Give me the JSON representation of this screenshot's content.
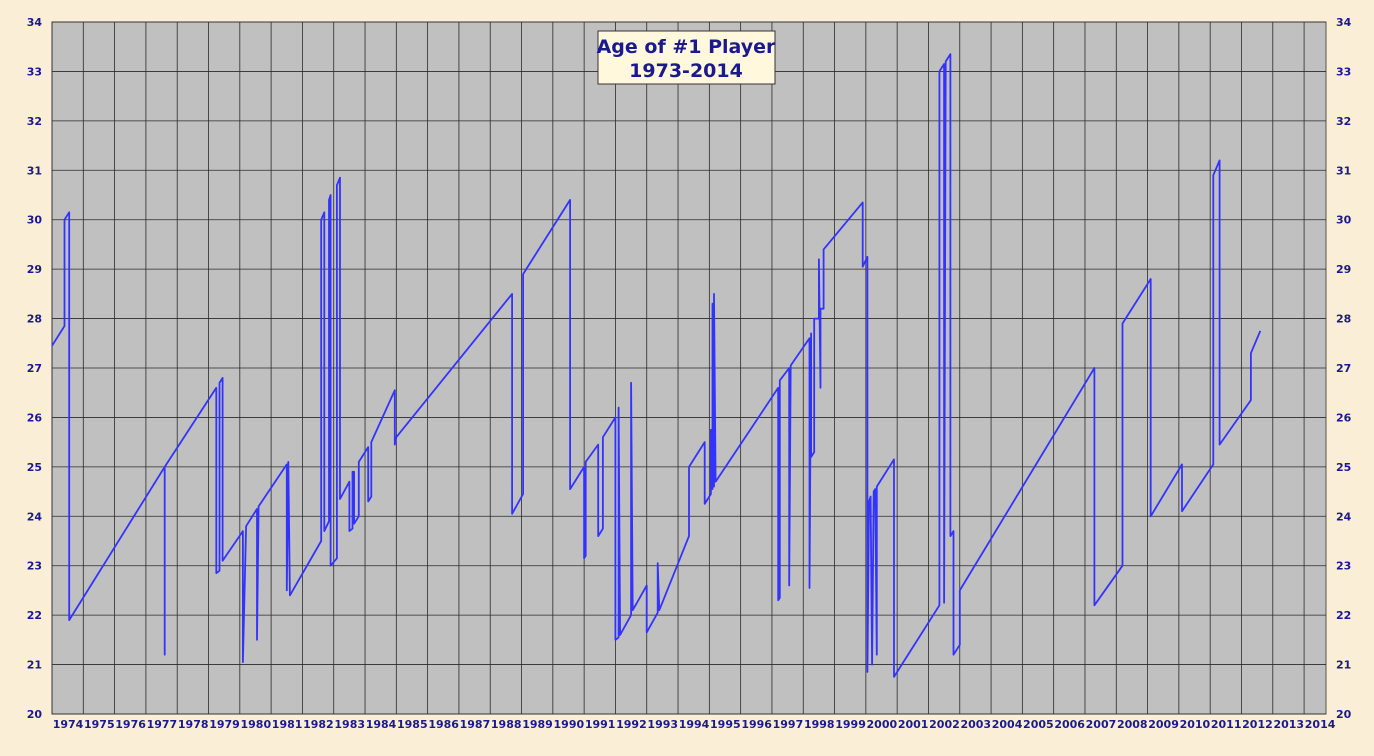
{
  "chart_data": {
    "type": "line",
    "title": "Age of #1 Player",
    "subtitle": "1973-2014",
    "xlabel": "",
    "ylabel": "",
    "xlim": [
      1974,
      2014.7
    ],
    "ylim": [
      20,
      34
    ],
    "x_ticks": [
      "1974",
      "1975",
      "1976",
      "1977",
      "1978",
      "1979",
      "1980",
      "1981",
      "1982",
      "1983",
      "1984",
      "1985",
      "1986",
      "1987",
      "1988",
      "1989",
      "1990",
      "1991",
      "1992",
      "1993",
      "1994",
      "1995",
      "1996",
      "1997",
      "1998",
      "1999",
      "2000",
      "2001",
      "2002",
      "2003",
      "2004",
      "2005",
      "2006",
      "2007",
      "2008",
      "2009",
      "2010",
      "2011",
      "2012",
      "2013",
      "2014"
    ],
    "y_ticks": [
      "20",
      "21",
      "22",
      "23",
      "24",
      "25",
      "26",
      "27",
      "28",
      "29",
      "30",
      "31",
      "32",
      "33",
      "34"
    ],
    "grid": true,
    "axes": "left-and-right",
    "colors": {
      "line": "#3333ff",
      "plot_bg": "#c0c0c0",
      "grid": "#2a2a2a",
      "title_box": "#fff8dc",
      "page_bg": "#fbeed6",
      "text": "#1a1a8c"
    },
    "series": [
      {
        "name": "",
        "points": [
          [
            1974.0,
            27.45
          ],
          [
            1974.4,
            27.85
          ],
          [
            1974.4,
            30.0
          ],
          [
            1974.55,
            30.15
          ],
          [
            1974.55,
            21.9
          ],
          [
            1977.6,
            25.0
          ],
          [
            1977.6,
            21.2
          ],
          [
            1977.6,
            25.0
          ],
          [
            1979.25,
            26.6
          ],
          [
            1979.25,
            22.85
          ],
          [
            1979.35,
            22.9
          ],
          [
            1979.35,
            26.7
          ],
          [
            1979.45,
            26.8
          ],
          [
            1979.45,
            23.1
          ],
          [
            1980.1,
            23.7
          ],
          [
            1980.1,
            21.05
          ],
          [
            1980.2,
            23.8
          ],
          [
            1980.55,
            24.15
          ],
          [
            1980.55,
            21.5
          ],
          [
            1980.6,
            24.2
          ],
          [
            1981.5,
            25.05
          ],
          [
            1981.5,
            22.5
          ],
          [
            1981.55,
            25.1
          ],
          [
            1981.6,
            22.4
          ],
          [
            1982.6,
            23.5
          ],
          [
            1982.6,
            30.0
          ],
          [
            1982.7,
            30.15
          ],
          [
            1982.7,
            23.7
          ],
          [
            1982.85,
            23.9
          ],
          [
            1982.85,
            30.4
          ],
          [
            1982.9,
            30.5
          ],
          [
            1982.9,
            23.0
          ],
          [
            1983.1,
            23.15
          ],
          [
            1983.1,
            30.7
          ],
          [
            1983.2,
            30.85
          ],
          [
            1983.2,
            24.35
          ],
          [
            1983.5,
            24.7
          ],
          [
            1983.5,
            23.7
          ],
          [
            1983.6,
            23.75
          ],
          [
            1983.6,
            24.9
          ],
          [
            1983.65,
            24.9
          ],
          [
            1983.65,
            23.85
          ],
          [
            1983.8,
            24.0
          ],
          [
            1983.8,
            25.1
          ],
          [
            1984.1,
            25.4
          ],
          [
            1984.1,
            24.3
          ],
          [
            1984.2,
            24.4
          ],
          [
            1984.2,
            25.5
          ],
          [
            1984.95,
            26.55
          ],
          [
            1984.95,
            25.45
          ],
          [
            1985.0,
            25.6
          ],
          [
            1988.7,
            28.5
          ],
          [
            1988.7,
            24.05
          ],
          [
            1989.05,
            24.45
          ],
          [
            1989.05,
            28.9
          ],
          [
            1990.55,
            30.4
          ],
          [
            1990.55,
            24.55
          ],
          [
            1991.0,
            25.0
          ],
          [
            1991.0,
            23.15
          ],
          [
            1991.05,
            23.2
          ],
          [
            1991.05,
            25.1
          ],
          [
            1991.45,
            25.45
          ],
          [
            1991.45,
            23.6
          ],
          [
            1991.6,
            23.75
          ],
          [
            1991.6,
            25.6
          ],
          [
            1992.0,
            26.0
          ],
          [
            1992.0,
            21.5
          ],
          [
            1992.1,
            21.55
          ],
          [
            1992.1,
            26.2
          ],
          [
            1992.15,
            21.6
          ],
          [
            1992.5,
            22.0
          ],
          [
            1992.5,
            26.7
          ],
          [
            1992.55,
            22.1
          ],
          [
            1993.0,
            22.6
          ],
          [
            1993.0,
            21.65
          ],
          [
            1993.35,
            22.05
          ],
          [
            1993.35,
            23.05
          ],
          [
            1993.4,
            22.1
          ],
          [
            1994.35,
            23.6
          ],
          [
            1994.35,
            25.0
          ],
          [
            1994.85,
            25.5
          ],
          [
            1994.85,
            24.25
          ],
          [
            1995.05,
            24.45
          ],
          [
            1995.05,
            25.75
          ],
          [
            1995.1,
            24.55
          ],
          [
            1995.1,
            28.3
          ],
          [
            1995.15,
            24.6
          ],
          [
            1995.15,
            28.5
          ],
          [
            1995.2,
            24.7
          ],
          [
            1997.2,
            26.6
          ],
          [
            1997.2,
            22.3
          ],
          [
            1997.25,
            22.35
          ],
          [
            1997.25,
            26.75
          ],
          [
            1997.55,
            27.0
          ],
          [
            1997.55,
            22.6
          ],
          [
            1997.6,
            27.05
          ],
          [
            1998.2,
            27.6
          ],
          [
            1998.2,
            22.55
          ],
          [
            1998.25,
            27.7
          ],
          [
            1998.25,
            25.2
          ],
          [
            1998.35,
            25.3
          ],
          [
            1998.35,
            28.0
          ],
          [
            1998.5,
            28.0
          ],
          [
            1998.5,
            29.2
          ],
          [
            1998.55,
            26.6
          ],
          [
            1998.55,
            28.2
          ],
          [
            1998.65,
            28.2
          ],
          [
            1998.65,
            29.4
          ],
          [
            1999.9,
            30.35
          ],
          [
            1999.9,
            29.05
          ],
          [
            2000.05,
            29.25
          ],
          [
            2000.05,
            20.85
          ],
          [
            2000.1,
            24.3
          ],
          [
            2000.15,
            24.4
          ],
          [
            2000.2,
            21.0
          ],
          [
            2000.25,
            24.5
          ],
          [
            2000.3,
            24.55
          ],
          [
            2000.35,
            21.2
          ],
          [
            2000.35,
            24.6
          ],
          [
            2000.9,
            25.15
          ],
          [
            2000.9,
            20.75
          ],
          [
            2002.35,
            22.2
          ],
          [
            2002.35,
            33.0
          ],
          [
            2002.5,
            33.15
          ],
          [
            2002.5,
            22.25
          ],
          [
            2002.55,
            33.2
          ],
          [
            2002.7,
            33.35
          ],
          [
            2002.7,
            23.6
          ],
          [
            2002.8,
            23.7
          ],
          [
            2002.8,
            21.2
          ],
          [
            2003.0,
            21.4
          ],
          [
            2003.0,
            22.5
          ],
          [
            2007.3,
            27.0
          ],
          [
            2007.3,
            22.2
          ],
          [
            2008.2,
            23.0
          ],
          [
            2008.2,
            27.9
          ],
          [
            2009.1,
            28.8
          ],
          [
            2009.1,
            24.0
          ],
          [
            2010.1,
            25.05
          ],
          [
            2010.1,
            24.1
          ],
          [
            2011.1,
            25.05
          ],
          [
            2011.1,
            30.9
          ],
          [
            2011.3,
            31.2
          ],
          [
            2011.3,
            25.45
          ],
          [
            2012.3,
            26.35
          ],
          [
            2012.3,
            27.3
          ],
          [
            2012.6,
            27.75
          ]
        ]
      }
    ]
  }
}
